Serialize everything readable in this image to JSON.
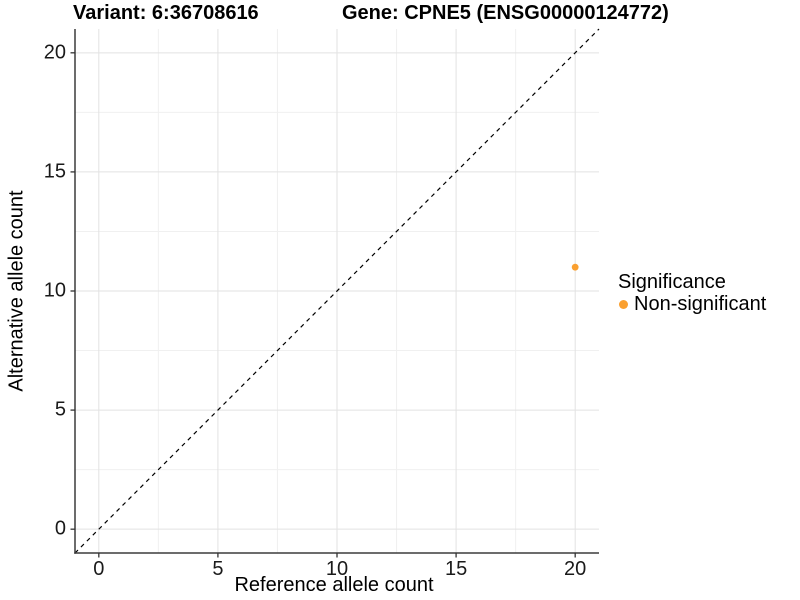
{
  "chart_data": {
    "type": "scatter",
    "title_left": "Variant: 6:36708616",
    "title_right": "Gene: CPNE5 (ENSG00000124772)",
    "xlabel": "Reference allele count",
    "ylabel": "Alternative allele count",
    "xlim": [
      -1,
      21
    ],
    "ylim": [
      -1,
      21
    ],
    "xticks": [
      0,
      5,
      10,
      15,
      20
    ],
    "yticks": [
      0,
      5,
      10,
      15,
      20
    ],
    "minor_xticks": [
      2.5,
      7.5,
      12.5,
      17.5
    ],
    "minor_yticks": [
      2.5,
      7.5,
      12.5,
      17.5
    ],
    "grid": "major+minor",
    "identity_line": {
      "equation": "y = x",
      "style": "dashed",
      "from": -1,
      "to": 21
    },
    "series": [
      {
        "name": "Non-significant",
        "color": "#FAA030",
        "points": [
          {
            "x": 20,
            "y": 11
          }
        ]
      }
    ],
    "legend": {
      "title": "Significance",
      "position": "right",
      "entries": [
        {
          "label": "Non-significant",
          "color": "#FAA030"
        }
      ]
    }
  },
  "colors": {
    "background": "#FFFFFF",
    "axis_line": "#3b3b3b",
    "tick_mark": "#333333",
    "grid_major": "#E2E2E2",
    "grid_minor": "#F0F0F0",
    "identity_line": "#000000",
    "tick_label": "#1A1A1A"
  }
}
